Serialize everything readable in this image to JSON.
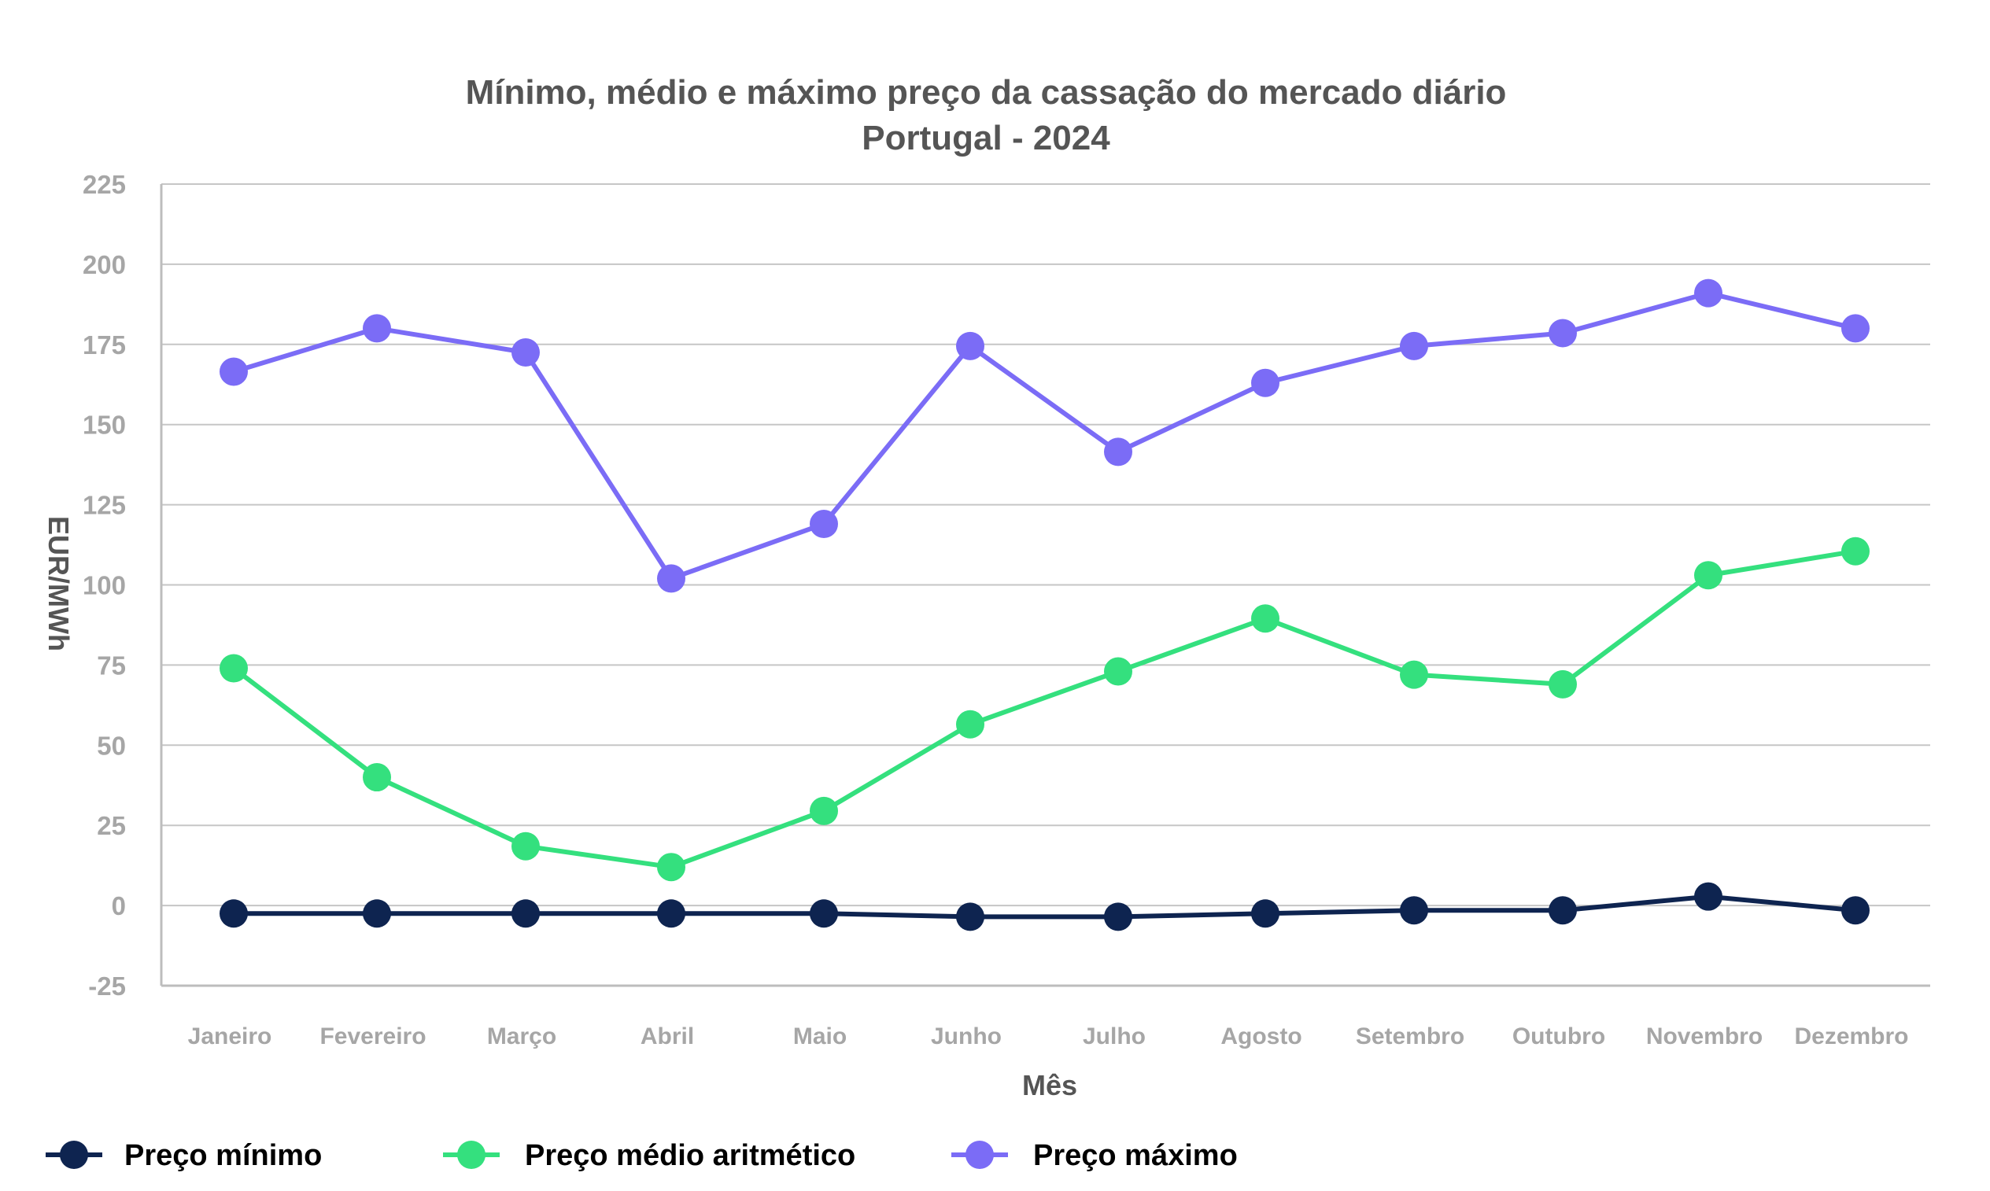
{
  "chart_data": {
    "type": "line",
    "title_line1": "Mínimo, médio e máximo preço da cassação do mercado diário",
    "title_line2": "Portugal - 2024",
    "xlabel": "Mês",
    "ylabel": "EUR/MWh",
    "ylim": [
      -25,
      225
    ],
    "yticks": [
      -25,
      0,
      25,
      50,
      75,
      100,
      125,
      150,
      175,
      200,
      225
    ],
    "ytick_labels": [
      "-25",
      "0",
      "25",
      "50",
      "75",
      "100",
      "125",
      "150",
      "175",
      "200",
      "225"
    ],
    "grid": true,
    "legend_position": "bottom",
    "categories": [
      "Janeiro",
      "Fevereiro",
      "Março",
      "Abril",
      "Maio",
      "Junho",
      "Julho",
      "Agosto",
      "Setembro",
      "Outubro",
      "Novembro",
      "Dezembro"
    ],
    "series": [
      {
        "name": "Preço mínimo",
        "color": "#0e2450",
        "values": [
          -2.5,
          -2.5,
          -2.5,
          -2.5,
          -2.5,
          -3.5,
          -3.5,
          -2.5,
          -1.5,
          -1.5,
          2.8,
          -1.5
        ]
      },
      {
        "name": "Preço médio aritmético",
        "color": "#34e07e",
        "values": [
          74,
          40,
          18.5,
          12,
          29.5,
          56.5,
          73,
          89.5,
          72,
          69,
          103,
          110.5
        ]
      },
      {
        "name": "Preço máximo",
        "color": "#7b6cf6",
        "values": [
          166.5,
          180,
          172.5,
          102,
          119,
          174.5,
          141.5,
          163,
          174.5,
          178.5,
          191,
          180
        ]
      }
    ]
  }
}
